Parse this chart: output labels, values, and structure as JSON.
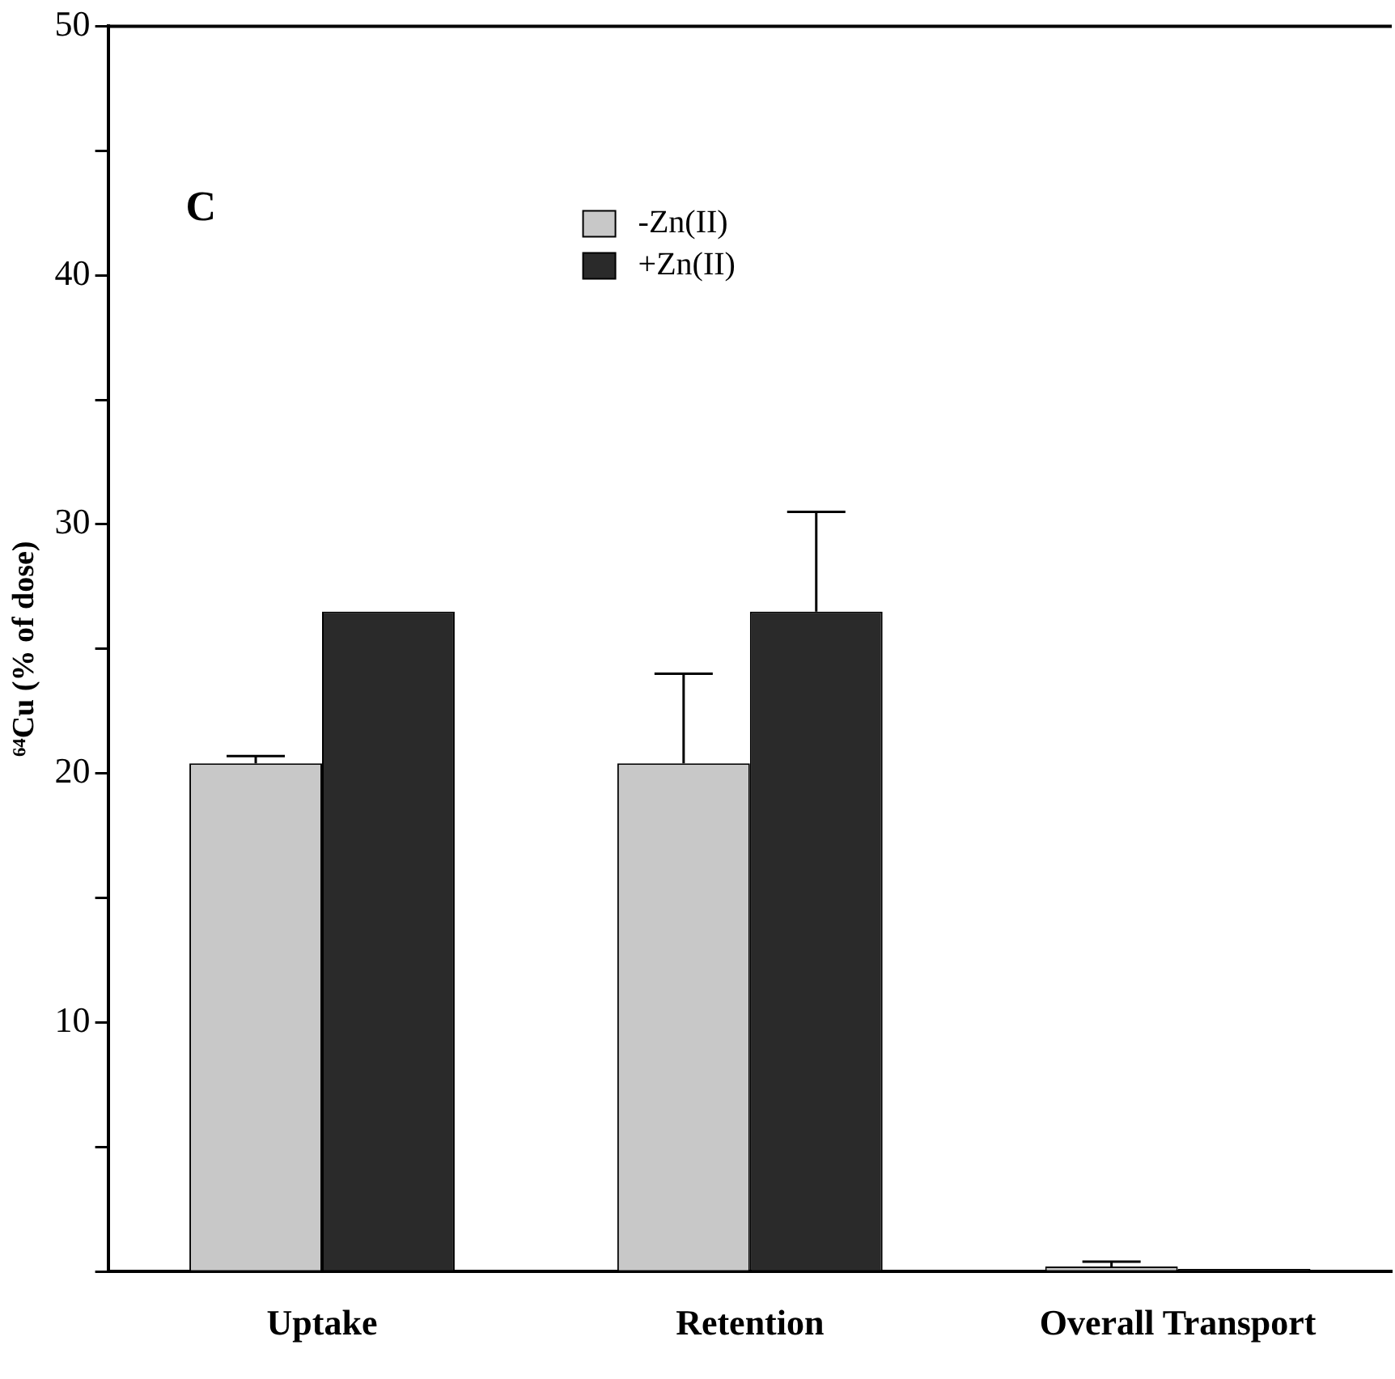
{
  "chart_data": {
    "type": "bar",
    "ylabel": "⁶⁴Cu (% of dose)",
    "categories": [
      "Uptake",
      "Retention",
      "Overall Transport"
    ],
    "series": [
      {
        "name": "-Zn(II)",
        "color": "#c8c8c8",
        "values": [
          20.4,
          20.4,
          0.2
        ],
        "errors": [
          0.3,
          3.6,
          0.2
        ]
      },
      {
        "name": "+Zn(II)",
        "color": "#2a2a2a",
        "values": [
          26.5,
          26.5,
          0.1
        ],
        "errors": [
          null,
          4.0,
          null
        ]
      }
    ],
    "ylim": [
      0,
      50
    ],
    "yticks": [
      {
        "value": 0,
        "label": null
      },
      {
        "value": 5,
        "label": null
      },
      10,
      {
        "value": 15,
        "label": null
      },
      20,
      {
        "value": 25,
        "label": null
      },
      30,
      {
        "value": 35,
        "label": null
      },
      40,
      {
        "value": 45,
        "label": null
      },
      50
    ],
    "grid": false,
    "legend": "top",
    "annotations": [
      "C"
    ]
  }
}
